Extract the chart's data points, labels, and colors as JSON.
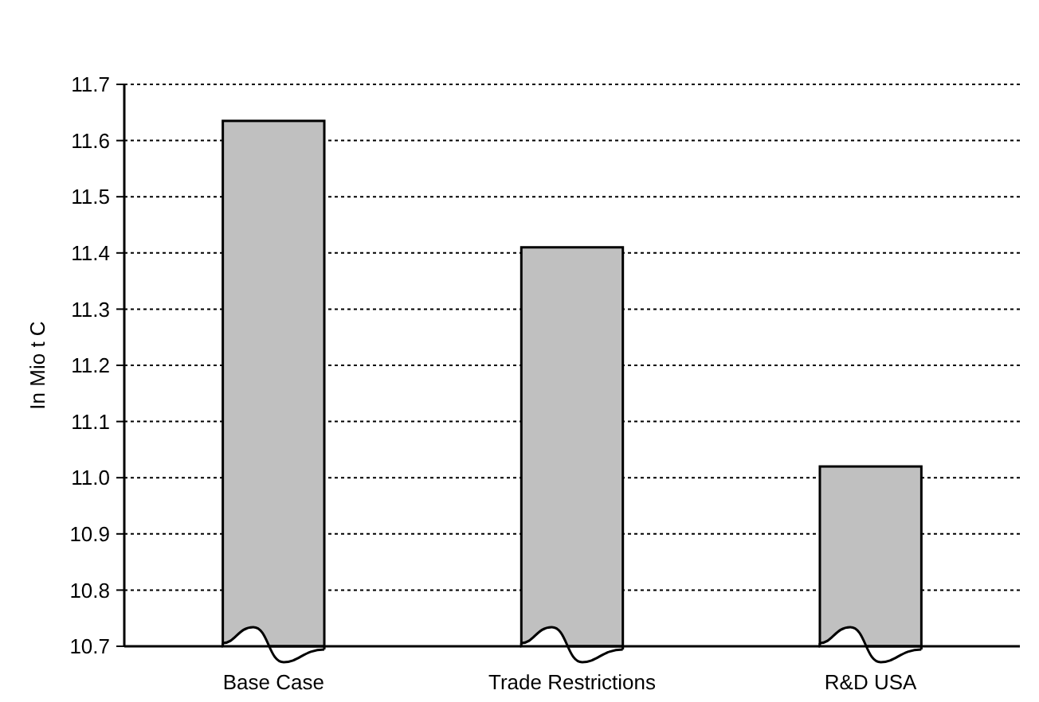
{
  "chart_data": {
    "type": "bar",
    "ylabel": "In Mio t C",
    "categories": [
      "Base Case",
      "Trade Restrictions",
      "R&D USA"
    ],
    "values": [
      11.635,
      11.41,
      11.02
    ],
    "color": "#c0c0c0",
    "ylim": [
      10.7,
      11.7
    ],
    "yticks": [
      10.7,
      10.8,
      10.9,
      {
        "value": 11,
        "label": "11.0"
      },
      11.1,
      11.2,
      11.3,
      11.4,
      11.5,
      11.6,
      11.7
    ],
    "grid": "y"
  }
}
